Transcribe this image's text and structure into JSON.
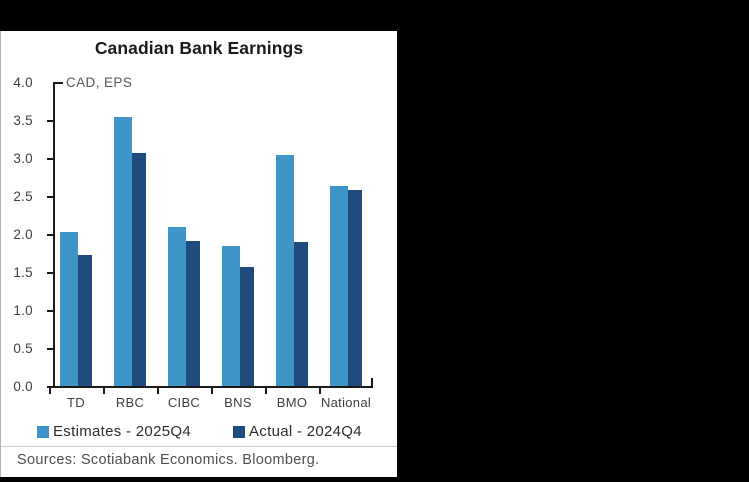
{
  "panel": {
    "sources": "Sources: Scotiabank Economics. Bloomberg."
  },
  "colors": {
    "background": "#000000",
    "panel_bg": "#FFFFFF",
    "axis": "#1A1A1A",
    "estimates_blue": "#3D95C8",
    "actual_navy": "#1F4B7D"
  },
  "chart_data": {
    "type": "bar",
    "title": "Canadian Bank Earnings",
    "subtitle": "CAD, EPS",
    "categories": [
      "TD",
      "RBC",
      "CIBC",
      "BNS",
      "BMO",
      "National"
    ],
    "series": [
      {
        "name": "Estimates - 2025Q4",
        "color": "#3D95C8",
        "values": [
          2.03,
          3.54,
          2.09,
          1.84,
          3.04,
          2.63
        ]
      },
      {
        "name": "Actual - 2024Q4",
        "color": "#1F4B7D",
        "values": [
          1.72,
          3.07,
          1.91,
          1.57,
          1.9,
          2.58
        ]
      }
    ],
    "ylim": [
      0.0,
      4.0
    ],
    "ytick_step": 0.5,
    "ytick_labels": [
      "0.0",
      "0.5",
      "1.0",
      "1.5",
      "2.0",
      "2.5",
      "3.0",
      "3.5",
      "4.0"
    ],
    "grid": false,
    "legend_position": "bottom"
  }
}
